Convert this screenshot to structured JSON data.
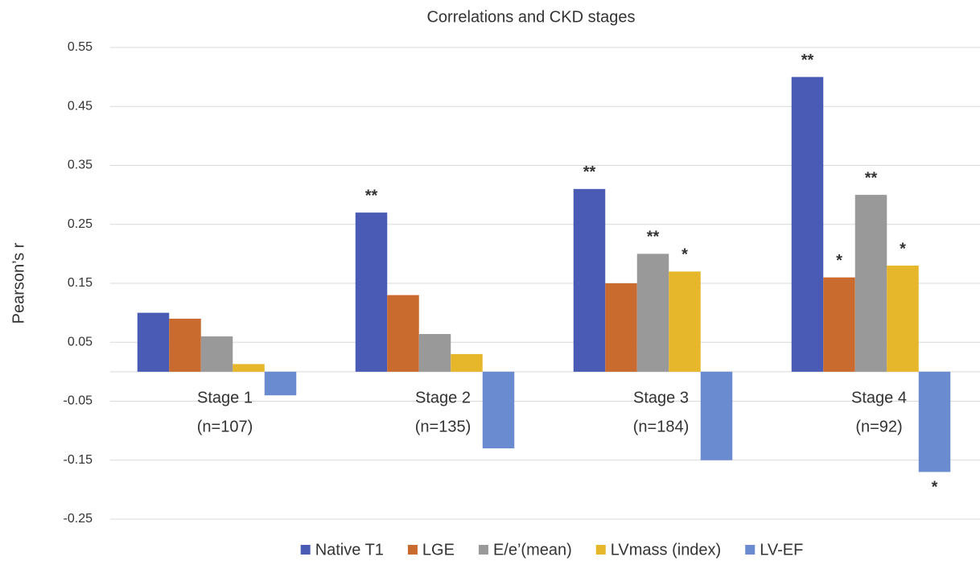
{
  "chart_data": {
    "type": "bar",
    "title": "Correlations and CKD stages",
    "y_label": "Pearson’s r",
    "categories": [
      [
        "Stage 1",
        "(n=107)"
      ],
      [
        "Stage 2",
        "(n=135)"
      ],
      [
        "Stage 3",
        "(n=184)"
      ],
      [
        "Stage 4",
        "(n=92)"
      ]
    ],
    "series": [
      {
        "name": "Native T1",
        "color": "#4a5bb5",
        "values": [
          0.1,
          0.27,
          0.31,
          0.5
        ],
        "annotations": [
          null,
          "**",
          "**",
          "**"
        ]
      },
      {
        "name": "LGE",
        "color": "#c96a2e",
        "values": [
          0.09,
          0.13,
          0.15,
          0.16
        ],
        "annotations": [
          null,
          null,
          null,
          "*"
        ]
      },
      {
        "name": "E/e’(mean)",
        "color": "#999999",
        "values": [
          0.06,
          0.064,
          0.2,
          0.3
        ],
        "annotations": [
          null,
          null,
          "**",
          "**"
        ]
      },
      {
        "name": "LVmass (index)",
        "color": "#e6b72a",
        "values": [
          0.013,
          0.03,
          0.17,
          0.18
        ],
        "annotations": [
          null,
          null,
          "*",
          "*"
        ]
      },
      {
        "name": "LV-EF",
        "color": "#6a8bcf",
        "values": [
          -0.04,
          -0.13,
          -0.15,
          -0.17
        ],
        "annotations": [
          null,
          null,
          null,
          "*"
        ]
      }
    ],
    "ylim": [
      -0.25,
      0.55
    ],
    "yticks": [
      0.55,
      0.45,
      0.35,
      0.25,
      0.15,
      0.05,
      -0.05,
      -0.15,
      -0.25
    ],
    "grid": true,
    "legend": "bottom"
  }
}
